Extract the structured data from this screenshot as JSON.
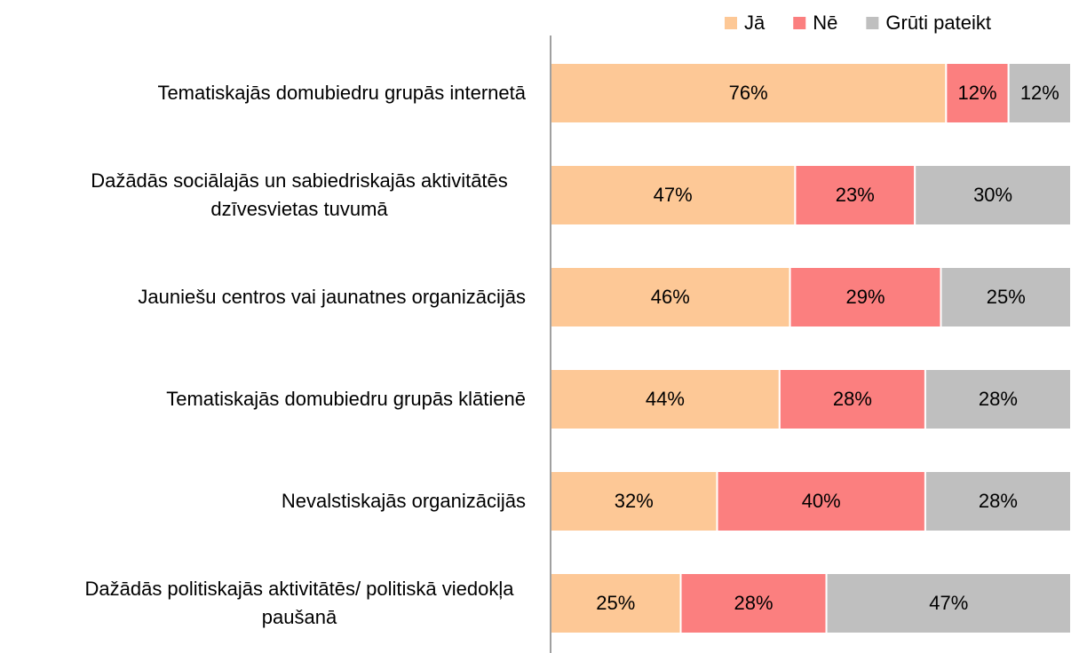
{
  "chart_data": {
    "type": "stacked-bar-horizontal",
    "categories": [
      "Tematiskajās domubiedru grupās internetā",
      "Dažādās sociālajās un sabiedriskajās aktivitātēs dzīvesvietas tuvumā",
      "Jauniešu centros vai jaunatnes organizācijās",
      "Tematiskajās domubiedru grupās klātienē",
      "Nevalstiskajās organizācijās",
      "Dažādās politiskajās aktivitātēs/ politiskā viedokļa paušanā"
    ],
    "series": [
      {
        "name": "Jā",
        "color": "#fdc896",
        "values": [
          76,
          47,
          46,
          44,
          32,
          25
        ],
        "value_labels": [
          "76%",
          "47%",
          "46%",
          "44%",
          "32%",
          "25%"
        ]
      },
      {
        "name": "Nē",
        "color": "#fb7f7f",
        "values": [
          12,
          23,
          29,
          28,
          40,
          28
        ],
        "value_labels": [
          "12%",
          "23%",
          "29%",
          "28%",
          "40%",
          "28%"
        ]
      },
      {
        "name": "Grūti pateikt",
        "color": "#bfbfbf",
        "values": [
          12,
          30,
          25,
          28,
          28,
          47
        ],
        "value_labels": [
          "12%",
          "30%",
          "25%",
          "28%",
          "28%",
          "47%"
        ]
      }
    ],
    "xlim": [
      0,
      100
    ],
    "legend": "top-right"
  }
}
